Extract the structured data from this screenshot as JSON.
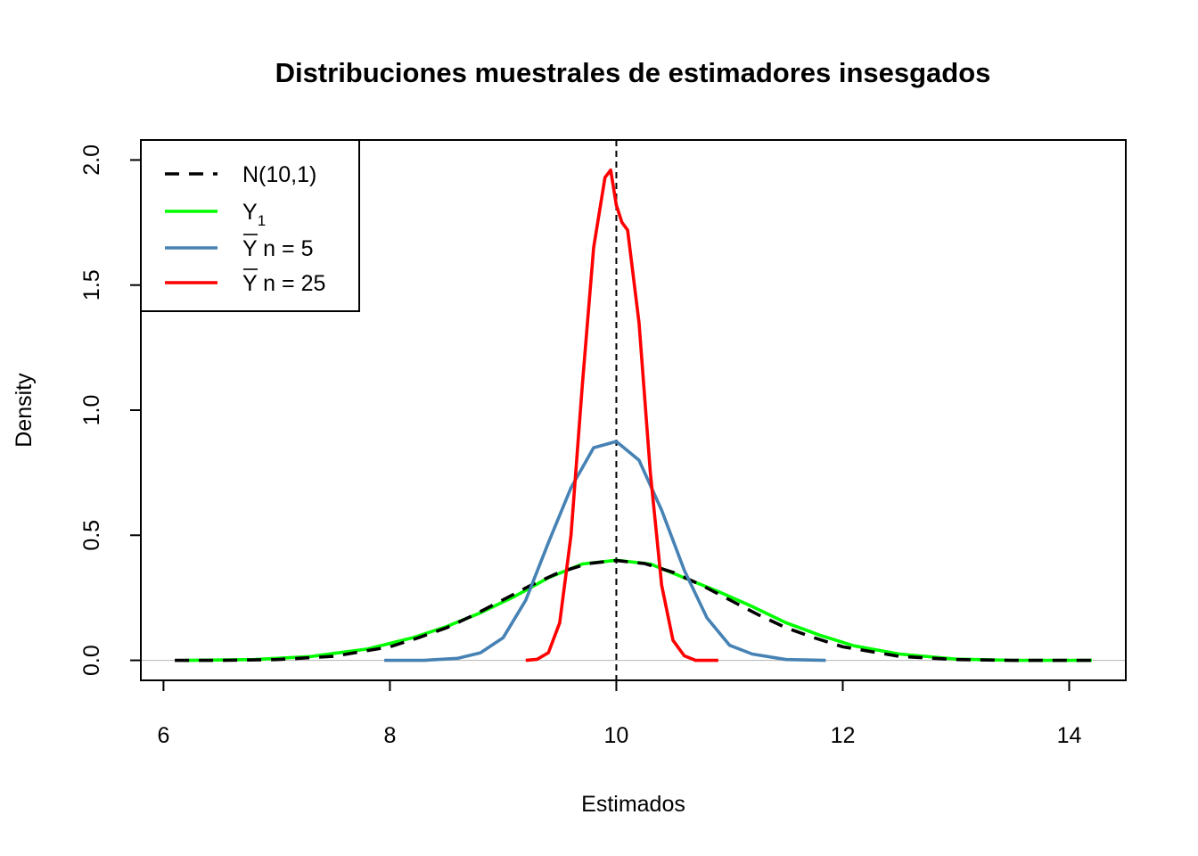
{
  "chart_data": {
    "type": "line",
    "title": "Distribuciones muestrales de estimadores insesgados",
    "xlabel": "Estimados",
    "ylabel": "Density",
    "xlim": [
      5.8,
      14.5
    ],
    "ylim": [
      -0.08,
      2.08
    ],
    "x_ticks": [
      6,
      8,
      10,
      12,
      14
    ],
    "x_tick_labels": [
      "6",
      "8",
      "10",
      "12",
      "14"
    ],
    "y_ticks": [
      0,
      0.5,
      1,
      1.5,
      2
    ],
    "y_tick_labels": [
      "0.0",
      "0.5",
      "1.0",
      "1.5",
      "2.0"
    ],
    "grid": false,
    "reference_lines": [
      {
        "orientation": "vertical",
        "x": 10,
        "style": "dashed",
        "color": "#000000"
      },
      {
        "orientation": "horizontal",
        "y": 0,
        "style": "solid",
        "color": "#bebebe"
      }
    ],
    "legend": {
      "position": "top-left",
      "entries": [
        {
          "label": "N(10,1)",
          "main": "N(10,1)",
          "sub": "",
          "overline": false,
          "suffix": ""
        },
        {
          "label": "Y1",
          "main": "Y",
          "sub": "1",
          "overline": false,
          "suffix": ""
        },
        {
          "label": "Y n = 5",
          "main": "Y",
          "sub": "",
          "overline": true,
          "suffix": " n = 5"
        },
        {
          "label": "Y n = 25",
          "main": "Y",
          "sub": "",
          "overline": true,
          "suffix": " n = 25"
        }
      ]
    },
    "series": [
      {
        "key": "normal",
        "color": "#000000",
        "dashed": true,
        "x": [
          6.1,
          6.5,
          7.0,
          7.5,
          8.0,
          8.25,
          8.5,
          8.75,
          9.0,
          9.25,
          9.5,
          9.75,
          10.0,
          10.25,
          10.5,
          10.75,
          11.0,
          11.25,
          11.5,
          11.75,
          12.0,
          12.5,
          13.0,
          13.5,
          14.2
        ],
        "y": [
          0.0,
          0.0,
          0.003,
          0.016,
          0.054,
          0.09,
          0.13,
          0.183,
          0.242,
          0.301,
          0.352,
          0.387,
          0.399,
          0.387,
          0.352,
          0.301,
          0.242,
          0.183,
          0.13,
          0.09,
          0.054,
          0.016,
          0.003,
          0.0,
          0.0
        ]
      },
      {
        "key": "y1",
        "color": "#00ff00",
        "dashed": false,
        "x": [
          6.2,
          6.8,
          7.3,
          7.8,
          8.2,
          8.5,
          8.8,
          9.1,
          9.4,
          9.7,
          10.0,
          10.3,
          10.6,
          10.9,
          11.2,
          11.5,
          11.8,
          12.1,
          12.5,
          13.0,
          13.5,
          14.2
        ],
        "y": [
          0.0,
          0.003,
          0.015,
          0.045,
          0.09,
          0.135,
          0.19,
          0.255,
          0.33,
          0.385,
          0.4,
          0.385,
          0.33,
          0.275,
          0.215,
          0.15,
          0.1,
          0.058,
          0.025,
          0.005,
          0.0,
          0.0
        ]
      },
      {
        "key": "mean_n5",
        "color": "#4682b4",
        "dashed": false,
        "x": [
          7.95,
          8.3,
          8.6,
          8.8,
          9.0,
          9.2,
          9.4,
          9.6,
          9.8,
          10.0,
          10.2,
          10.4,
          10.6,
          10.8,
          11.0,
          11.2,
          11.5,
          11.85
        ],
        "y": [
          0.0,
          0.0,
          0.008,
          0.03,
          0.09,
          0.24,
          0.47,
          0.69,
          0.85,
          0.875,
          0.8,
          0.6,
          0.36,
          0.17,
          0.06,
          0.025,
          0.003,
          0.0
        ]
      },
      {
        "key": "mean_n25",
        "color": "#ff0000",
        "dashed": false,
        "x": [
          9.2,
          9.3,
          9.4,
          9.5,
          9.6,
          9.7,
          9.8,
          9.9,
          9.95,
          10.0,
          10.05,
          10.1,
          10.2,
          10.3,
          10.4,
          10.5,
          10.6,
          10.7,
          10.9
        ],
        "y": [
          0.0,
          0.004,
          0.03,
          0.15,
          0.5,
          1.1,
          1.65,
          1.93,
          1.96,
          1.82,
          1.75,
          1.72,
          1.35,
          0.75,
          0.3,
          0.08,
          0.018,
          0.0,
          0.0
        ]
      }
    ]
  }
}
